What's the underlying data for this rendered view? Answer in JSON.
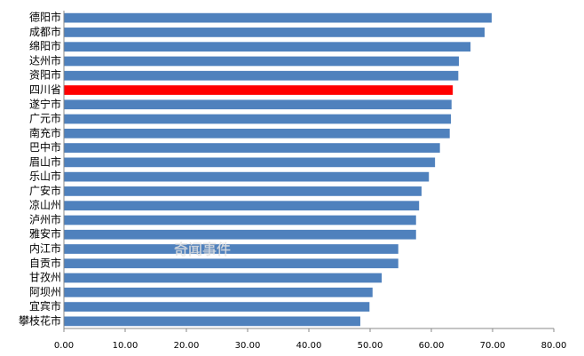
{
  "chart_data": {
    "type": "hbar",
    "categories": [
      "德阳市",
      "成都市",
      "绵阳市",
      "达州市",
      "资阳市",
      "四川省",
      "遂宁市",
      "广元市",
      "南充市",
      "巴中市",
      "眉山市",
      "乐山市",
      "广安市",
      "凉山州",
      "泸州市",
      "雅安市",
      "内江市",
      "自贡市",
      "甘孜州",
      "阿坝州",
      "宜宾市",
      "攀枝花市"
    ],
    "values": [
      69.85,
      68.7,
      66.4,
      64.5,
      64.4,
      63.5,
      63.3,
      63.2,
      63.0,
      61.4,
      60.6,
      59.6,
      58.4,
      58.0,
      57.5,
      57.5,
      54.6,
      54.6,
      51.9,
      50.4,
      49.9,
      48.4
    ],
    "colors": [
      "#4f81bd",
      "#4f81bd",
      "#4f81bd",
      "#4f81bd",
      "#4f81bd",
      "#ff0000",
      "#4f81bd",
      "#4f81bd",
      "#4f81bd",
      "#4f81bd",
      "#4f81bd",
      "#4f81bd",
      "#4f81bd",
      "#4f81bd",
      "#4f81bd",
      "#4f81bd",
      "#4f81bd",
      "#4f81bd",
      "#4f81bd",
      "#4f81bd",
      "#4f81bd",
      "#4f81bd"
    ],
    "xlim": [
      0,
      80
    ],
    "xticks": [
      {
        "value": 0,
        "label": "0.00"
      },
      {
        "value": 10,
        "label": "10.00"
      },
      {
        "value": 20,
        "label": "20.00"
      },
      {
        "value": 30,
        "label": "30.00"
      },
      {
        "value": 40,
        "label": "40.00"
      },
      {
        "value": 50,
        "label": "50.00"
      },
      {
        "value": 60,
        "label": "60.00"
      },
      {
        "value": 70,
        "label": "70.00"
      },
      {
        "value": 80,
        "label": "80.00"
      }
    ],
    "watermark": "奇闻事件"
  }
}
